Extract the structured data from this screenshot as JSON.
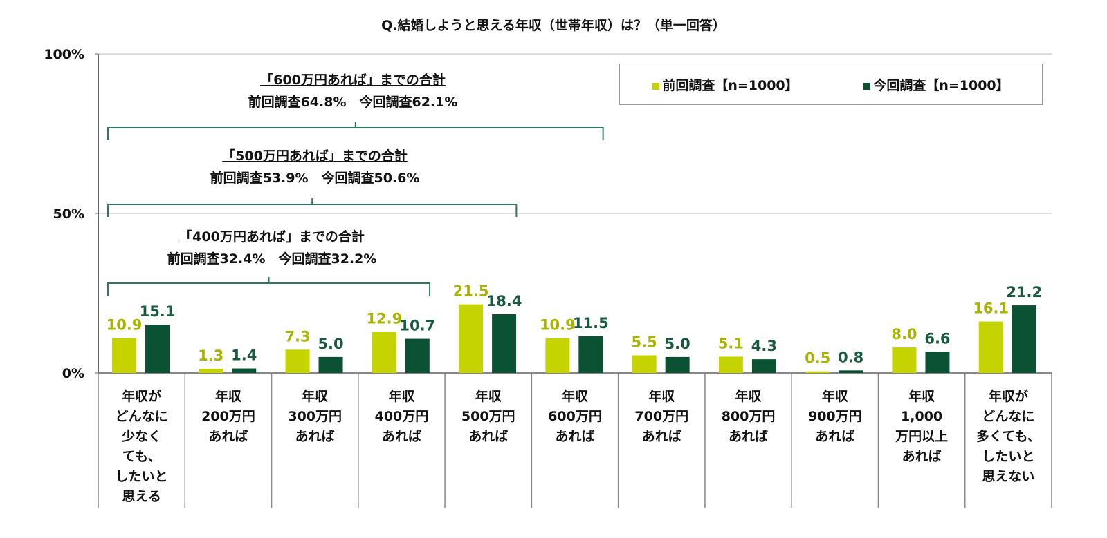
{
  "chart_data": {
    "type": "bar",
    "title": "Q.結婚しようと思える年収（世帯年収）は？（単一回答）",
    "categories": [
      [
        "年収が",
        "どんなに",
        "少なく",
        "ても、",
        "したいと",
        "思える"
      ],
      [
        "年収",
        "200万円",
        "あれば"
      ],
      [
        "年収",
        "300万円",
        "あれば"
      ],
      [
        "年収",
        "400万円",
        "あれば"
      ],
      [
        "年収",
        "500万円",
        "あれば"
      ],
      [
        "年収",
        "600万円",
        "あれば"
      ],
      [
        "年収",
        "700万円",
        "あれば"
      ],
      [
        "年収",
        "800万円",
        "あれば"
      ],
      [
        "年収",
        "900万円",
        "あれば"
      ],
      [
        "年収",
        "1,000",
        "万円以上",
        "あれば"
      ],
      [
        "年収が",
        "どんなに",
        "多くても、",
        "したいと",
        "思えない"
      ]
    ],
    "series": [
      {
        "name": "前回調査【n=1000】",
        "color": "#c5d400",
        "label_color": "#a8b400",
        "values": [
          10.9,
          1.3,
          7.3,
          12.9,
          21.5,
          10.9,
          5.5,
          5.1,
          0.5,
          8.0,
          16.1
        ]
      },
      {
        "name": "今回調査【n=1000】",
        "color": "#0b5234",
        "label_color": "#1a5a40",
        "values": [
          15.1,
          1.4,
          5.0,
          10.7,
          18.4,
          11.5,
          5.0,
          4.3,
          0.8,
          6.6,
          21.2
        ]
      }
    ],
    "ylim": [
      0,
      100
    ],
    "yticks": [
      "0%",
      "50%",
      "100%"
    ],
    "grid": true,
    "legend": "top-right",
    "annotations": [
      {
        "heading": "「600万円あれば」までの合計",
        "text": "前回調査64.8%　今回調査62.1%",
        "span": [
          0,
          5
        ]
      },
      {
        "heading": "「500万円あれば」までの合計",
        "text": "前回調査53.9%　今回調査50.6%",
        "span": [
          0,
          4
        ]
      },
      {
        "heading": "「400万円あれば」までの合計",
        "text": "前回調査32.4%　今回調査32.2%",
        "span": [
          0,
          3
        ]
      }
    ],
    "bracket_color": "#2e7a5a"
  }
}
